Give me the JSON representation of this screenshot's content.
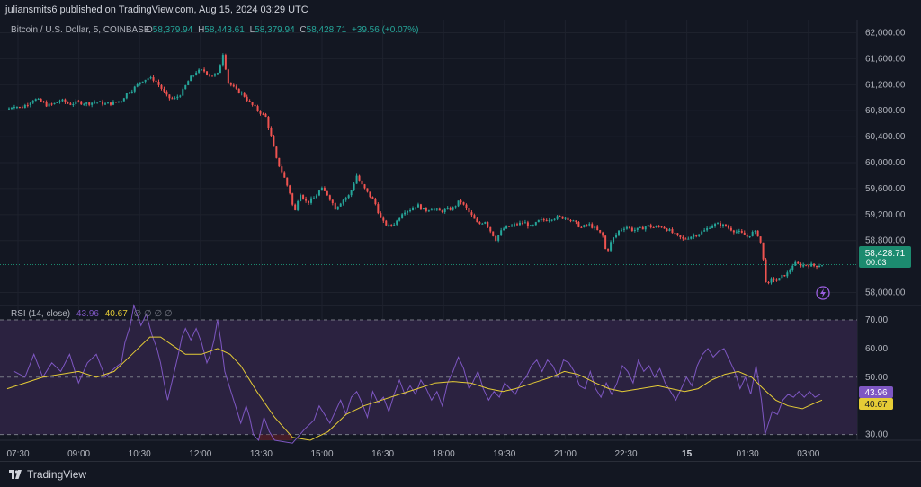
{
  "header": {
    "publisher": "juliansmits6 published on TradingView.com, Aug 15, 2024 03:29 UTC"
  },
  "legend": {
    "symbol": "Bitcoin / U.S. Dollar, 5, COINBASE",
    "o_label": "O",
    "o_value": "58,379.94",
    "h_label": "H",
    "h_value": "58,443.61",
    "l_label": "L",
    "l_value": "58,379.94",
    "c_label": "C",
    "c_value": "58,428.71",
    "change": "+39.56 (+0.07%)"
  },
  "price_axis": {
    "labels": [
      "62,000.00",
      "61,600.00",
      "61,200.00",
      "60,800.00",
      "60,400.00",
      "60,000.00",
      "59,600.00",
      "59,200.00",
      "58,800.00",
      "58,000.00"
    ],
    "values": [
      62000,
      61600,
      61200,
      60800,
      60400,
      60000,
      59600,
      59200,
      58800,
      58000
    ],
    "current_price": "58,428.71",
    "countdown": "00:03"
  },
  "rsi": {
    "legend_label": "RSI (14, close)",
    "rsi_value": "43.96",
    "ma_value": "40.67",
    "extra_icons": "∅ ∅ ∅ ∅",
    "axis_labels": [
      "70.00",
      "60.00",
      "50.00",
      "30.00"
    ],
    "axis_values": [
      70,
      60,
      50,
      30
    ]
  },
  "time_axis": {
    "labels": [
      "07:30",
      "09:00",
      "10:30",
      "12:00",
      "13:30",
      "15:00",
      "16:30",
      "18:00",
      "19:30",
      "21:00",
      "22:30",
      "15",
      "01:30",
      "03:00"
    ]
  },
  "footer": {
    "brand": "TradingView"
  },
  "colors": {
    "up": "#26a69a",
    "down": "#ef5350",
    "rsi": "#7e57c2",
    "ma": "#e5cc36",
    "rsi_band": "#2b2240",
    "background": "#131722",
    "current_tag": "#1c8b6f"
  },
  "chart_data": {
    "type": "candlestick",
    "interval_minutes": 5,
    "price_axis_range": [
      57800,
      62200
    ],
    "rsi_axis_range": [
      28,
      75
    ],
    "rsi_band": [
      30,
      70
    ],
    "close_series": [
      [
        0,
        60820
      ],
      [
        8,
        60880
      ],
      [
        15,
        60840
      ],
      [
        22,
        60900
      ],
      [
        30,
        60980
      ],
      [
        38,
        60940
      ],
      [
        45,
        60880
      ],
      [
        52,
        60900
      ],
      [
        60,
        60960
      ],
      [
        70,
        60900
      ],
      [
        80,
        60930
      ],
      [
        90,
        60910
      ],
      [
        100,
        60940
      ],
      [
        110,
        60900
      ],
      [
        120,
        60920
      ],
      [
        128,
        60960
      ],
      [
        135,
        61080
      ],
      [
        142,
        61140
      ],
      [
        150,
        61260
      ],
      [
        158,
        61300
      ],
      [
        165,
        61280
      ],
      [
        172,
        61160
      ],
      [
        180,
        61000
      ],
      [
        188,
        60980
      ],
      [
        196,
        61080
      ],
      [
        204,
        61280
      ],
      [
        212,
        61400
      ],
      [
        220,
        61420
      ],
      [
        228,
        61340
      ],
      [
        236,
        61360
      ],
      [
        242,
        61680
      ],
      [
        248,
        61240
      ],
      [
        256,
        61120
      ],
      [
        264,
        61060
      ],
      [
        272,
        60920
      ],
      [
        280,
        60820
      ],
      [
        290,
        60700
      ],
      [
        296,
        60400
      ],
      [
        302,
        60050
      ],
      [
        310,
        59800
      ],
      [
        318,
        59500
      ],
      [
        322,
        59200
      ],
      [
        328,
        59550
      ],
      [
        336,
        59380
      ],
      [
        344,
        59450
      ],
      [
        352,
        59600
      ],
      [
        360,
        59500
      ],
      [
        368,
        59300
      ],
      [
        376,
        59420
      ],
      [
        384,
        59500
      ],
      [
        392,
        59800
      ],
      [
        398,
        59650
      ],
      [
        406,
        59500
      ],
      [
        412,
        59400
      ],
      [
        420,
        59100
      ],
      [
        428,
        59020
      ],
      [
        436,
        59080
      ],
      [
        444,
        59250
      ],
      [
        452,
        59280
      ],
      [
        460,
        59350
      ],
      [
        468,
        59260
      ],
      [
        476,
        59300
      ],
      [
        484,
        59250
      ],
      [
        492,
        59270
      ],
      [
        500,
        59300
      ],
      [
        508,
        59420
      ],
      [
        514,
        59300
      ],
      [
        520,
        59200
      ],
      [
        528,
        59050
      ],
      [
        536,
        59100
      ],
      [
        542,
        58950
      ],
      [
        548,
        58820
      ],
      [
        556,
        58980
      ],
      [
        564,
        59020
      ],
      [
        572,
        59050
      ],
      [
        580,
        59080
      ],
      [
        588,
        59000
      ],
      [
        596,
        59100
      ],
      [
        604,
        59120
      ],
      [
        612,
        59150
      ],
      [
        620,
        59160
      ],
      [
        628,
        59150
      ],
      [
        636,
        59080
      ],
      [
        644,
        59000
      ],
      [
        652,
        59050
      ],
      [
        660,
        58980
      ],
      [
        668,
        58870
      ],
      [
        672,
        58600
      ],
      [
        678,
        58800
      ],
      [
        686,
        58950
      ],
      [
        694,
        59020
      ],
      [
        702,
        58960
      ],
      [
        710,
        58980
      ],
      [
        718,
        59030
      ],
      [
        726,
        59000
      ],
      [
        734,
        59020
      ],
      [
        742,
        58960
      ],
      [
        750,
        58880
      ],
      [
        758,
        58820
      ],
      [
        766,
        58860
      ],
      [
        774,
        58900
      ],
      [
        782,
        58950
      ],
      [
        790,
        59040
      ],
      [
        798,
        59050
      ],
      [
        806,
        59020
      ],
      [
        814,
        58960
      ],
      [
        822,
        58920
      ],
      [
        830,
        58860
      ],
      [
        838,
        58940
      ],
      [
        844,
        58860
      ],
      [
        848,
        58500
      ],
      [
        852,
        58080
      ],
      [
        858,
        58220
      ],
      [
        864,
        58180
      ],
      [
        870,
        58260
      ],
      [
        876,
        58300
      ],
      [
        882,
        58450
      ],
      [
        890,
        58420
      ],
      [
        898,
        58430
      ],
      [
        906,
        58410
      ],
      [
        914,
        58429
      ]
    ],
    "rsi_series": [
      [
        8,
        52
      ],
      [
        20,
        50
      ],
      [
        30,
        58
      ],
      [
        40,
        50
      ],
      [
        50,
        55
      ],
      [
        60,
        52
      ],
      [
        70,
        58
      ],
      [
        80,
        48
      ],
      [
        90,
        55
      ],
      [
        100,
        58
      ],
      [
        110,
        50
      ],
      [
        120,
        53
      ],
      [
        128,
        55
      ],
      [
        132,
        62
      ],
      [
        138,
        68
      ],
      [
        142,
        75
      ],
      [
        150,
        68
      ],
      [
        156,
        72
      ],
      [
        162,
        65
      ],
      [
        168,
        60
      ],
      [
        172,
        55
      ],
      [
        176,
        48
      ],
      [
        180,
        42
      ],
      [
        186,
        50
      ],
      [
        192,
        58
      ],
      [
        196,
        64
      ],
      [
        200,
        67
      ],
      [
        206,
        63
      ],
      [
        212,
        67
      ],
      [
        218,
        62
      ],
      [
        224,
        55
      ],
      [
        228,
        58
      ],
      [
        232,
        63
      ],
      [
        236,
        70
      ],
      [
        240,
        62
      ],
      [
        244,
        52
      ],
      [
        250,
        46
      ],
      [
        256,
        40
      ],
      [
        262,
        34
      ],
      [
        268,
        40
      ],
      [
        272,
        36
      ],
      [
        276,
        30
      ],
      [
        282,
        28
      ],
      [
        288,
        36
      ],
      [
        294,
        31
      ],
      [
        300,
        28
      ],
      [
        320,
        27
      ],
      [
        334,
        32
      ],
      [
        344,
        35
      ],
      [
        350,
        40
      ],
      [
        356,
        37
      ],
      [
        362,
        34
      ],
      [
        368,
        38
      ],
      [
        374,
        42
      ],
      [
        380,
        37
      ],
      [
        386,
        43
      ],
      [
        392,
        45
      ],
      [
        398,
        41
      ],
      [
        404,
        36
      ],
      [
        410,
        45
      ],
      [
        416,
        41
      ],
      [
        422,
        43
      ],
      [
        428,
        38
      ],
      [
        434,
        44
      ],
      [
        440,
        49
      ],
      [
        446,
        44
      ],
      [
        452,
        47
      ],
      [
        458,
        44
      ],
      [
        464,
        49
      ],
      [
        470,
        46
      ],
      [
        476,
        42
      ],
      [
        482,
        45
      ],
      [
        488,
        40
      ],
      [
        494,
        48
      ],
      [
        500,
        52
      ],
      [
        506,
        57
      ],
      [
        512,
        53
      ],
      [
        518,
        46
      ],
      [
        522,
        48
      ],
      [
        528,
        52
      ],
      [
        534,
        46
      ],
      [
        540,
        42
      ],
      [
        546,
        45
      ],
      [
        552,
        43
      ],
      [
        558,
        48
      ],
      [
        564,
        46
      ],
      [
        570,
        44
      ],
      [
        576,
        48
      ],
      [
        582,
        50
      ],
      [
        588,
        54
      ],
      [
        594,
        56
      ],
      [
        600,
        52
      ],
      [
        606,
        56
      ],
      [
        612,
        54
      ],
      [
        618,
        50
      ],
      [
        624,
        56
      ],
      [
        630,
        55
      ],
      [
        636,
        52
      ],
      [
        642,
        47
      ],
      [
        648,
        46
      ],
      [
        654,
        52
      ],
      [
        660,
        46
      ],
      [
        666,
        43
      ],
      [
        672,
        48
      ],
      [
        678,
        44
      ],
      [
        684,
        48
      ],
      [
        690,
        54
      ],
      [
        696,
        52
      ],
      [
        702,
        48
      ],
      [
        708,
        56
      ],
      [
        714,
        52
      ],
      [
        720,
        54
      ],
      [
        726,
        50
      ],
      [
        732,
        53
      ],
      [
        738,
        48
      ],
      [
        744,
        45
      ],
      [
        750,
        42
      ],
      [
        756,
        46
      ],
      [
        762,
        50
      ],
      [
        768,
        47
      ],
      [
        774,
        54
      ],
      [
        780,
        58
      ],
      [
        786,
        60
      ],
      [
        792,
        57
      ],
      [
        798,
        59
      ],
      [
        804,
        60
      ],
      [
        810,
        56
      ],
      [
        816,
        52
      ],
      [
        822,
        46
      ],
      [
        828,
        50
      ],
      [
        834,
        44
      ],
      [
        840,
        54
      ],
      [
        846,
        42
      ],
      [
        850,
        30
      ],
      [
        854,
        34
      ],
      [
        858,
        38
      ],
      [
        864,
        37
      ],
      [
        870,
        42
      ],
      [
        876,
        44
      ],
      [
        882,
        43
      ],
      [
        888,
        45
      ],
      [
        894,
        43
      ],
      [
        900,
        45
      ],
      [
        906,
        43
      ],
      [
        912,
        44
      ]
    ],
    "ma_series": [
      [
        0,
        46
      ],
      [
        40,
        50
      ],
      [
        80,
        52
      ],
      [
        100,
        50
      ],
      [
        120,
        52
      ],
      [
        140,
        58
      ],
      [
        160,
        64
      ],
      [
        172,
        64
      ],
      [
        186,
        61
      ],
      [
        200,
        58
      ],
      [
        218,
        58
      ],
      [
        236,
        60
      ],
      [
        250,
        58
      ],
      [
        262,
        54
      ],
      [
        280,
        45
      ],
      [
        300,
        36
      ],
      [
        320,
        29
      ],
      [
        340,
        28
      ],
      [
        360,
        31
      ],
      [
        380,
        37
      ],
      [
        400,
        40
      ],
      [
        420,
        42
      ],
      [
        440,
        44
      ],
      [
        460,
        46
      ],
      [
        480,
        48
      ],
      [
        500,
        48.5
      ],
      [
        520,
        48
      ],
      [
        540,
        46
      ],
      [
        556,
        45
      ],
      [
        570,
        46
      ],
      [
        590,
        48
      ],
      [
        610,
        50
      ],
      [
        625,
        52
      ],
      [
        640,
        51
      ],
      [
        660,
        48
      ],
      [
        675,
        46
      ],
      [
        690,
        45
      ],
      [
        710,
        46
      ],
      [
        730,
        47
      ],
      [
        745,
        46
      ],
      [
        760,
        45
      ],
      [
        775,
        46
      ],
      [
        790,
        49
      ],
      [
        805,
        51
      ],
      [
        820,
        52
      ],
      [
        835,
        50
      ],
      [
        848,
        46
      ],
      [
        862,
        42
      ],
      [
        876,
        40
      ],
      [
        892,
        39
      ],
      [
        906,
        41
      ],
      [
        914,
        42
      ]
    ]
  }
}
